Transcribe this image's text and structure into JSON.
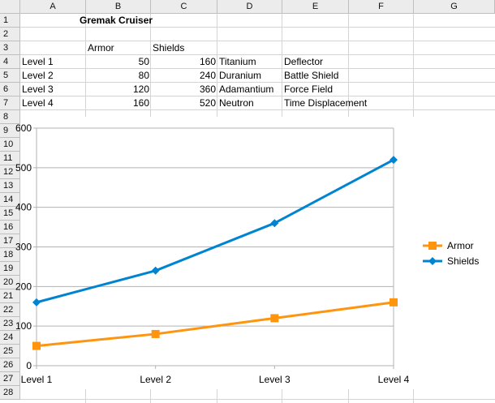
{
  "columns": [
    "A",
    "B",
    "C",
    "D",
    "E",
    "F",
    "G"
  ],
  "rows": [
    "1",
    "2",
    "3",
    "4",
    "5",
    "6",
    "7",
    "8",
    "9",
    "10",
    "11",
    "12",
    "13",
    "14",
    "15",
    "16",
    "17",
    "18",
    "19",
    "20",
    "21",
    "22",
    "23",
    "24",
    "25",
    "26",
    "27",
    "28"
  ],
  "cells": {
    "title": "Gremak Cruiser",
    "header_armor": "Armor",
    "header_shields": "Shields",
    "data": [
      {
        "level": "Level 1",
        "armor": "50",
        "shields": "160",
        "armor_type": "Titanium",
        "shield_type": "Deflector"
      },
      {
        "level": "Level 2",
        "armor": "80",
        "shields": "240",
        "armor_type": "Duranium",
        "shield_type": "Battle Shield"
      },
      {
        "level": "Level 3",
        "armor": "120",
        "shields": "360",
        "armor_type": "Adamantium",
        "shield_type": "Force Field"
      },
      {
        "level": "Level 4",
        "armor": "160",
        "shields": "520",
        "armor_type": "Neutron",
        "shield_type": "Time Displacement"
      }
    ]
  },
  "chart_data": {
    "type": "line",
    "categories": [
      "Level 1",
      "Level 2",
      "Level 3",
      "Level 4"
    ],
    "series": [
      {
        "name": "Armor",
        "values": [
          50,
          80,
          120,
          160
        ],
        "color": "#ff950e",
        "marker": "square"
      },
      {
        "name": "Shields",
        "values": [
          160,
          240,
          360,
          520
        ],
        "color": "#0084d1",
        "marker": "diamond"
      }
    ],
    "y_ticks": [
      "0",
      "100",
      "200",
      "300",
      "400",
      "500",
      "600"
    ],
    "ylim": [
      0,
      600
    ],
    "legend_position": "right",
    "gridlines": true
  }
}
